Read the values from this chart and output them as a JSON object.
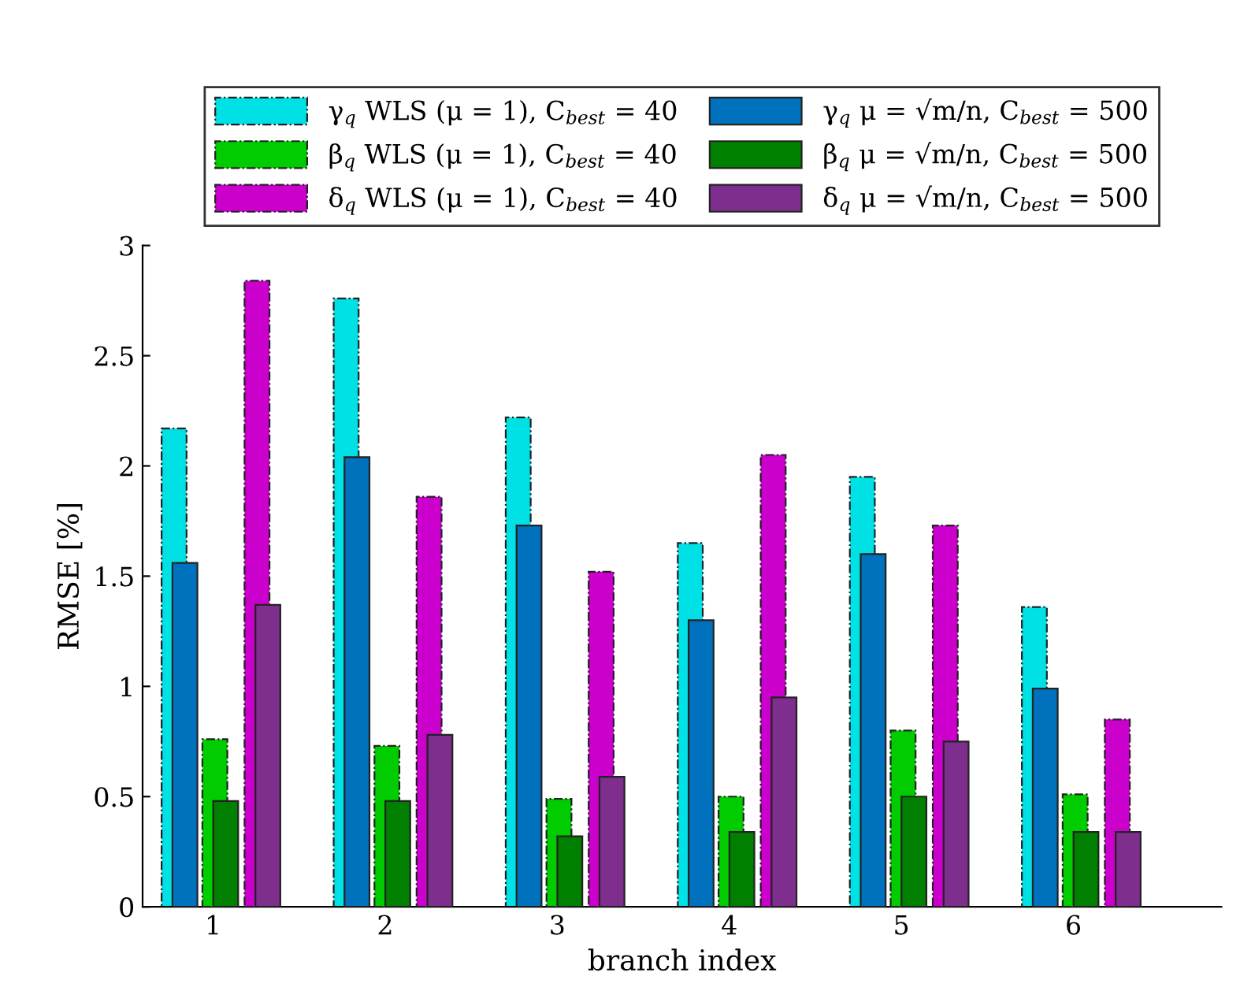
{
  "chart_data": {
    "type": "bar",
    "xlabel": "branch index",
    "ylabel": "RMSE [%]",
    "categories": [
      "1",
      "2",
      "3",
      "4",
      "5",
      "6"
    ],
    "ylim": [
      0,
      3
    ],
    "yticks": [
      0,
      0.5,
      1,
      1.5,
      2,
      2.5,
      3
    ],
    "grid": false,
    "legend": "top",
    "series": [
      {
        "name": "γ$_{q}$ WLS (μ = 1), C$_{best}$ = 40",
        "color": "#00e1e6",
        "line_style": "dashed",
        "values": [
          2.17,
          2.76,
          2.22,
          1.65,
          1.95,
          1.36
        ]
      },
      {
        "name": "β$_{q}$ WLS (μ = 1), C$_{best}$ = 40",
        "color": "#00cc00",
        "line_style": "dashed",
        "values": [
          0.76,
          0.73,
          0.49,
          0.5,
          0.8,
          0.51
        ]
      },
      {
        "name": "δ$_{q}$ WLS (μ = 1), C$_{best}$ = 40",
        "color": "#cc00cc",
        "line_style": "dashed",
        "values": [
          2.84,
          1.86,
          1.52,
          2.05,
          1.73,
          0.85
        ]
      },
      {
        "name": "γ$_{q}$ μ = √m/n, C$_{best}$ = 500",
        "color": "#0072bd",
        "line_style": "solid",
        "values": [
          1.56,
          2.04,
          1.73,
          1.3,
          1.6,
          0.99
        ]
      },
      {
        "name": "β$_{q}$ μ = √m/n, C$_{best}$ = 500",
        "color": "#007f00",
        "line_style": "solid",
        "values": [
          0.48,
          0.48,
          0.32,
          0.34,
          0.5,
          0.34
        ]
      },
      {
        "name": "δ$_{q}$ μ = √m/n, C$_{best}$ = 500",
        "color": "#7e2f8e",
        "line_style": "solid",
        "values": [
          1.37,
          0.78,
          0.59,
          0.95,
          0.75,
          0.34
        ]
      }
    ]
  }
}
